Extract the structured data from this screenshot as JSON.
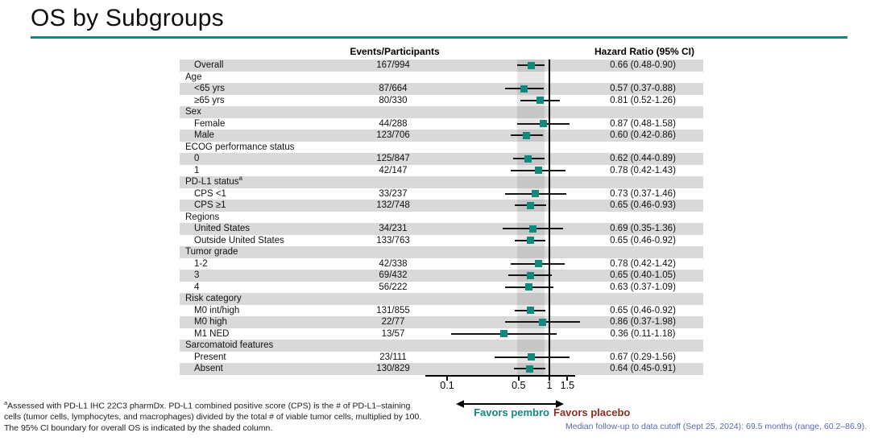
{
  "title": "OS by Subgroups",
  "table": {
    "col_events": "Events/Participants",
    "col_hr": "Hazard Ratio (95% CI)"
  },
  "chart_data": {
    "type": "forest",
    "x_scale": "log",
    "x_ticks": [
      0.1,
      0.5,
      1,
      1.5
    ],
    "x_range": [
      0.06,
      1.8
    ],
    "ref_line": 1.0,
    "shaded_band": [
      0.48,
      0.9
    ],
    "shaded_band_note": "95% CI boundary for overall OS",
    "marker_shape": "square",
    "rows": [
      {
        "label": "Overall",
        "indent": true,
        "events": "167/994",
        "hr": 0.66,
        "lo": 0.48,
        "hi": 0.9,
        "hr_text": "0.66 (0.48-0.90)"
      },
      {
        "label": "Age",
        "header": true
      },
      {
        "label": "<65 yrs",
        "indent": true,
        "events": "87/664",
        "hr": 0.57,
        "lo": 0.37,
        "hi": 0.88,
        "hr_text": "0.57 (0.37-0.88)"
      },
      {
        "label": "≥65 yrs",
        "indent": true,
        "events": "80/330",
        "hr": 0.81,
        "lo": 0.52,
        "hi": 1.26,
        "hr_text": "0.81 (0.52-1.26)"
      },
      {
        "label": "Sex",
        "header": true
      },
      {
        "label": "Female",
        "indent": true,
        "events": "44/288",
        "hr": 0.87,
        "lo": 0.48,
        "hi": 1.58,
        "hr_text": "0.87 (0.48-1.58)"
      },
      {
        "label": "Male",
        "indent": true,
        "events": "123/706",
        "hr": 0.6,
        "lo": 0.42,
        "hi": 0.86,
        "hr_text": "0.60 (0.42-0.86)"
      },
      {
        "label": "ECOG performance status",
        "header": true
      },
      {
        "label": "0",
        "indent": true,
        "events": "125/847",
        "hr": 0.62,
        "lo": 0.44,
        "hi": 0.89,
        "hr_text": "0.62 (0.44-0.89)"
      },
      {
        "label": "1",
        "indent": true,
        "events": "42/147",
        "hr": 0.78,
        "lo": 0.42,
        "hi": 1.43,
        "hr_text": "0.78 (0.42-1.43)"
      },
      {
        "label": "PD-L1 status",
        "sup": "a",
        "header": true
      },
      {
        "label": "CPS <1",
        "indent": true,
        "events": "33/237",
        "hr": 0.73,
        "lo": 0.37,
        "hi": 1.46,
        "hr_text": "0.73 (0.37-1.46)"
      },
      {
        "label": "CPS ≥1",
        "indent": true,
        "events": "132/748",
        "hr": 0.65,
        "lo": 0.46,
        "hi": 0.93,
        "hr_text": "0.65 (0.46-0.93)"
      },
      {
        "label": "Regions",
        "header": true
      },
      {
        "label": "United States",
        "indent": true,
        "events": "34/231",
        "hr": 0.69,
        "lo": 0.35,
        "hi": 1.36,
        "hr_text": "0.69 (0.35-1.36)"
      },
      {
        "label": "Outside United States",
        "indent": true,
        "events": "133/763",
        "hr": 0.65,
        "lo": 0.46,
        "hi": 0.92,
        "hr_text": "0.65 (0.46-0.92)"
      },
      {
        "label": "Tumor grade",
        "header": true
      },
      {
        "label": "1-2",
        "indent": true,
        "events": "42/338",
        "hr": 0.78,
        "lo": 0.42,
        "hi": 1.42,
        "hr_text": "0.78 (0.42-1.42)"
      },
      {
        "label": "3",
        "indent": true,
        "events": "69/432",
        "hr": 0.65,
        "lo": 0.4,
        "hi": 1.05,
        "hr_text": "0.65 (0.40-1.05)"
      },
      {
        "label": "4",
        "indent": true,
        "events": "56/222",
        "hr": 0.63,
        "lo": 0.37,
        "hi": 1.09,
        "hr_text": "0.63 (0.37-1.09)"
      },
      {
        "label": "Risk category",
        "header": true
      },
      {
        "label": "M0 int/high",
        "indent": true,
        "events": "131/855",
        "hr": 0.65,
        "lo": 0.46,
        "hi": 0.92,
        "hr_text": "0.65 (0.46-0.92)"
      },
      {
        "label": "M0 high",
        "indent": true,
        "events": "22/77",
        "hr": 0.86,
        "lo": 0.37,
        "hi": 1.98,
        "hr_text": "0.86 (0.37-1.98)"
      },
      {
        "label": "M1 NED",
        "indent": true,
        "events": "13/57",
        "hr": 0.36,
        "lo": 0.11,
        "hi": 1.18,
        "hr_text": "0.36 (0.11-1.18)"
      },
      {
        "label": "Sarcomatoid features",
        "header": true
      },
      {
        "label": "Present",
        "indent": true,
        "events": "23/111",
        "hr": 0.67,
        "lo": 0.29,
        "hi": 1.56,
        "hr_text": "0.67 (0.29-1.56)"
      },
      {
        "label": "Absent",
        "indent": true,
        "events": "130/829",
        "hr": 0.64,
        "lo": 0.45,
        "hi": 0.91,
        "hr_text": "0.64 (0.45-0.91)"
      }
    ]
  },
  "axis_annotations": {
    "favors_left": "Favors pembro",
    "favors_right": "Favors placebo"
  },
  "footnote": {
    "sup": "a",
    "lines": [
      "Assessed with PD-L1 IHC 22C3 pharmDx. PD-L1 combined positive score (CPS) is the # of PD-L1–staining",
      "cells (tumor cells, lymphocytes, and macrophages) divided by the total # of viable tumor cells, multiplied by 100.",
      "The 95% CI boundary for overall OS is indicated by the shaded column."
    ]
  },
  "follow_up_note": "Median follow-up to data cutoff (Sept 25, 2024): 69.5 months (range, 60.2–86.9).",
  "colors": {
    "accent_teal": "#12897F",
    "favors_pembro_text": "#15897F",
    "favors_placebo_text": "#8B2F22",
    "follow_up_note_blue": "#5868AF",
    "row_stripe_gray": "#D9D9D9"
  }
}
